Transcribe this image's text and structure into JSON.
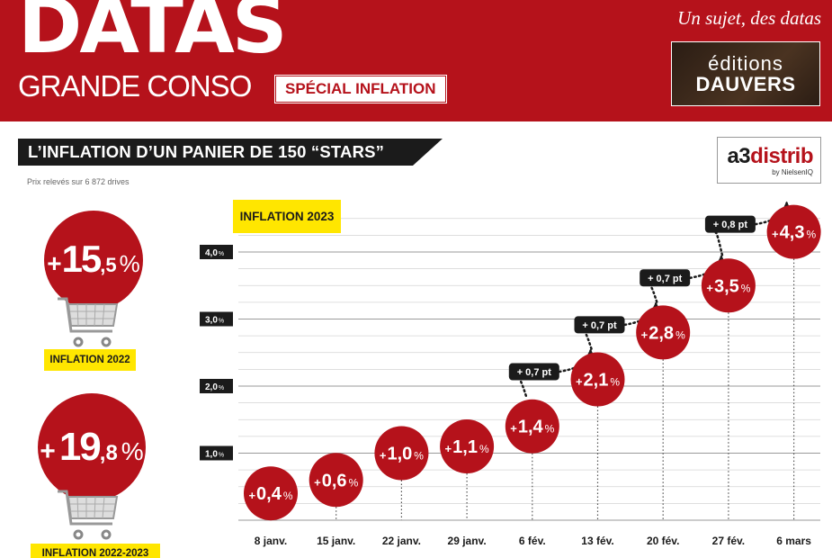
{
  "header": {
    "logo_line1": "DATAS",
    "logo_line2": "GRANDE CONSO",
    "badge": "SPÉCIAL INFLATION",
    "tagline": "Un sujet, des datas",
    "editions_line1": "éditions",
    "editions_line2": "DAUVERS"
  },
  "section": {
    "title": "L’INFLATION D’UN PANIER DE 150 “STARS”",
    "subtitle": "Prix relevés sur 6 872 drives",
    "partner_main": "a3",
    "partner_red": "distrib",
    "partner_sub": "by NielsenIQ"
  },
  "yearly": [
    {
      "prefix": "+",
      "int": "15",
      "dec": ",5",
      "unit": "%",
      "label": "INFLATION 2022"
    },
    {
      "prefix": "+",
      "int": "19",
      "dec": ",8",
      "unit": "%",
      "label": "INFLATION 2022-2023"
    }
  ],
  "colors": {
    "accent": "#b5121b",
    "highlight": "#ffe600",
    "dark": "#1b1b1b"
  },
  "chart_data": {
    "type": "scatter",
    "title": "INFLATION 2023",
    "categories": [
      "8 janv.",
      "15 janv.",
      "22 janv.",
      "29 janv.",
      "6 févr.",
      "13 févr.",
      "20 févr.",
      "27 févr.",
      "6 mars"
    ],
    "category_labels": [
      "8 janv.",
      "15 janv.",
      "22 janv.",
      "29 janv.",
      "6 fév.",
      "13 fév.",
      "20 fév.",
      "27 fév.",
      "6 mars"
    ],
    "values": [
      0.4,
      0.6,
      1.0,
      1.1,
      1.4,
      2.1,
      2.8,
      3.5,
      4.3
    ],
    "value_labels": [
      "0,4",
      "0,6",
      "1,0",
      "1,1",
      "1,4",
      "2,1",
      "2,8",
      "3,5",
      "4,3"
    ],
    "value_prefix": "+",
    "value_unit": "%",
    "y_ticks": [
      1.0,
      2.0,
      3.0,
      4.0
    ],
    "y_tick_labels": [
      "1,0",
      "2,0",
      "3,0",
      "4,0"
    ],
    "y_tick_unit": "%",
    "ylim": [
      0,
      4.5
    ],
    "grid": true,
    "annotations": [
      {
        "from": "6 févr.",
        "to": "13 févr.",
        "text": "+ 0,7 pt"
      },
      {
        "from": "13 févr.",
        "to": "20 févr.",
        "text": "+ 0,7 pt"
      },
      {
        "from": "20 févr.",
        "to": "27 févr.",
        "text": "+ 0,7 pt"
      },
      {
        "from": "27 févr.",
        "to": "6 mars",
        "text": "+ 0,8 pt"
      }
    ]
  }
}
